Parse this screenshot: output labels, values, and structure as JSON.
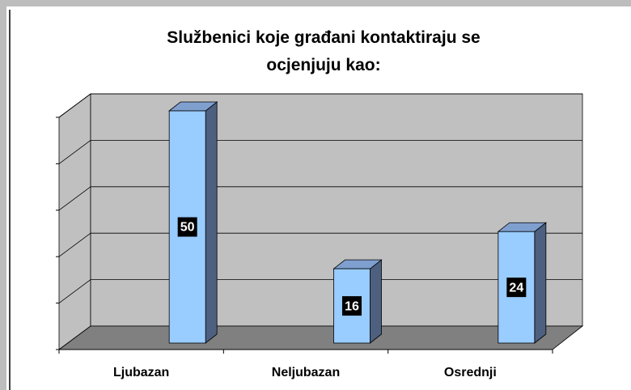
{
  "chart_data": {
    "type": "bar3d",
    "title": "Službenici koje građani kontaktiraju se ocjenjuju kao:",
    "categories": [
      "Ljubazan",
      "Neljubazan",
      "Osrednji"
    ],
    "values": [
      50,
      16,
      24
    ],
    "color": "#99ccff",
    "ylim": [
      0,
      50
    ],
    "yticks": [
      0,
      10,
      20,
      30,
      40,
      50
    ],
    "grid": true
  }
}
